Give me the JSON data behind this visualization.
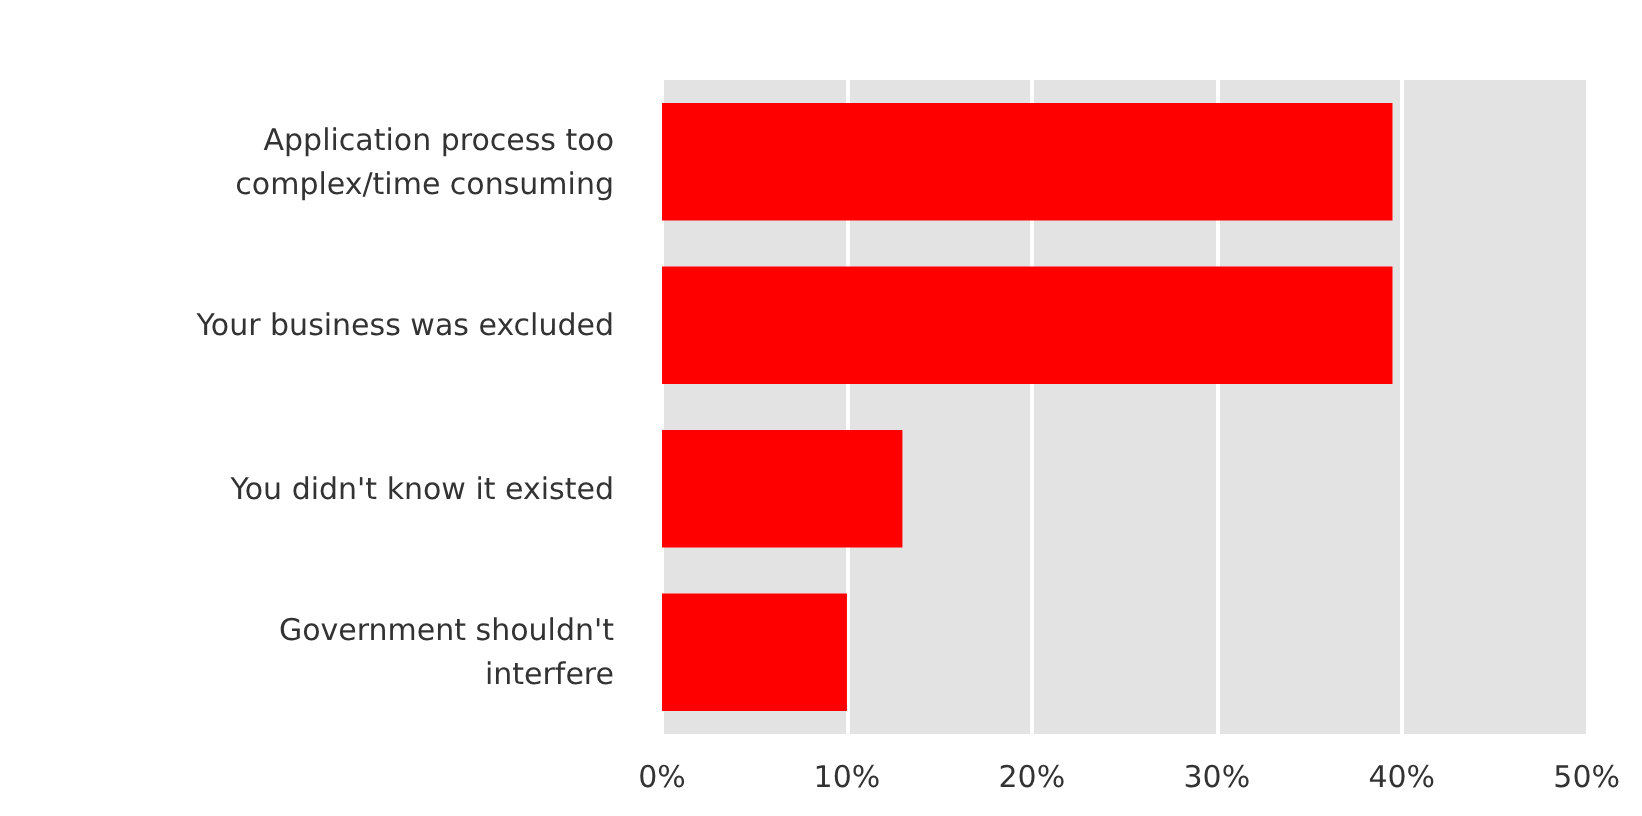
{
  "chart_data": {
    "type": "bar",
    "orientation": "horizontal",
    "categories": [
      "Application process too\ncomplex/time consuming",
      "Your business was excluded",
      "You didn't know it existed",
      "Government shouldn't\ninterfere"
    ],
    "values": [
      39.5,
      39.5,
      13,
      10
    ],
    "color": "#ff0000",
    "xlim": [
      0,
      50
    ],
    "xticks": [
      {
        "value": 0,
        "label": "0%"
      },
      {
        "value": 10,
        "label": "10%"
      },
      {
        "value": 20,
        "label": "20%"
      },
      {
        "value": 30,
        "label": "30%"
      },
      {
        "value": 40,
        "label": "40%"
      },
      {
        "value": 50,
        "label": "50%"
      }
    ],
    "grid": "x"
  }
}
